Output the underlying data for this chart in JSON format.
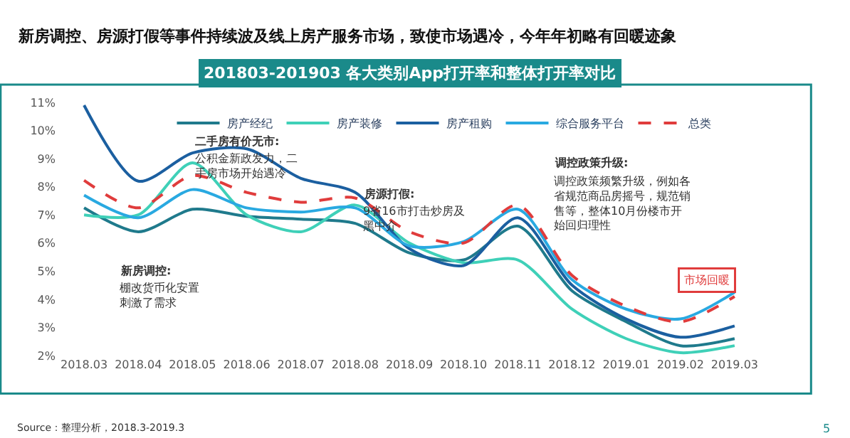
{
  "chart_data": {
    "type": "line",
    "title": "新房调控、房源打假等事件持续波及线上房产服务市场，致使市场遇冷，今年年初略有回暖迹象",
    "subtitle": "201803-201903 各大类别App打开率和整体打开率对比",
    "categories": [
      "2018.03",
      "2018.04",
      "2018.05",
      "2018.06",
      "2018.07",
      "2018.08",
      "2018.09",
      "2018.10",
      "2018.11",
      "2018.12",
      "2019.01",
      "2019.02",
      "2019.03"
    ],
    "series": [
      {
        "name": "房产经纪",
        "color": "#1f7a8c",
        "values": [
          7.25,
          6.4,
          7.2,
          6.95,
          6.85,
          6.7,
          5.65,
          5.4,
          6.6,
          4.3,
          3.2,
          2.35,
          2.6
        ]
      },
      {
        "name": "房产装修",
        "color": "#3fd0b8",
        "values": [
          7.0,
          7.0,
          8.85,
          7.0,
          6.4,
          7.35,
          6.0,
          5.3,
          5.4,
          3.65,
          2.6,
          2.1,
          2.35
        ]
      },
      {
        "name": "房产租购",
        "color": "#1b5fa0",
        "values": [
          10.9,
          8.2,
          9.2,
          9.35,
          8.3,
          7.8,
          5.8,
          5.2,
          6.9,
          4.5,
          3.3,
          2.65,
          3.05
        ]
      },
      {
        "name": "综合服务平台",
        "color": "#29a9e1",
        "values": [
          7.7,
          6.9,
          7.9,
          7.25,
          7.1,
          7.25,
          5.9,
          6.05,
          7.2,
          4.7,
          3.65,
          3.3,
          4.25
        ]
      },
      {
        "name": "总类",
        "color": "#e03c3c",
        "line_style": "dashed",
        "values": [
          8.23,
          7.25,
          8.4,
          7.8,
          7.45,
          7.6,
          6.4,
          6.0,
          7.35,
          4.85,
          3.75,
          3.2,
          4.1
        ]
      }
    ],
    "ylim": [
      2,
      11
    ],
    "yticks": [
      {
        "value": 2,
        "label": "2%"
      },
      {
        "value": 3,
        "label": "3%"
      },
      {
        "value": 4,
        "label": "4%"
      },
      {
        "value": 5,
        "label": "5%"
      },
      {
        "value": 6,
        "label": "6%"
      },
      {
        "value": 7,
        "label": "7%"
      },
      {
        "value": 8,
        "label": "8%"
      },
      {
        "value": 9,
        "label": "9%"
      },
      {
        "value": 10,
        "label": "10%"
      },
      {
        "value": 11,
        "label": "11%"
      }
    ],
    "legend": "top",
    "line_style": "solid",
    "marker": "none",
    "annotations": [
      "新房调控:",
      "棚改货币化安置刺激了需求",
      "二手房有价无市:",
      "公积金新政发力，二手房市场开始遇冷",
      "房源打假:",
      "9省16市打击炒房及黑中介",
      "调控政策升级:",
      "调控政策频繁升级，例如各省规范商品房摇号，规范销售等，整体10月份楼市开始回归理性",
      "市场回暖",
      "Source：整理分析，2018.3-2019.3",
      "5"
    ]
  }
}
